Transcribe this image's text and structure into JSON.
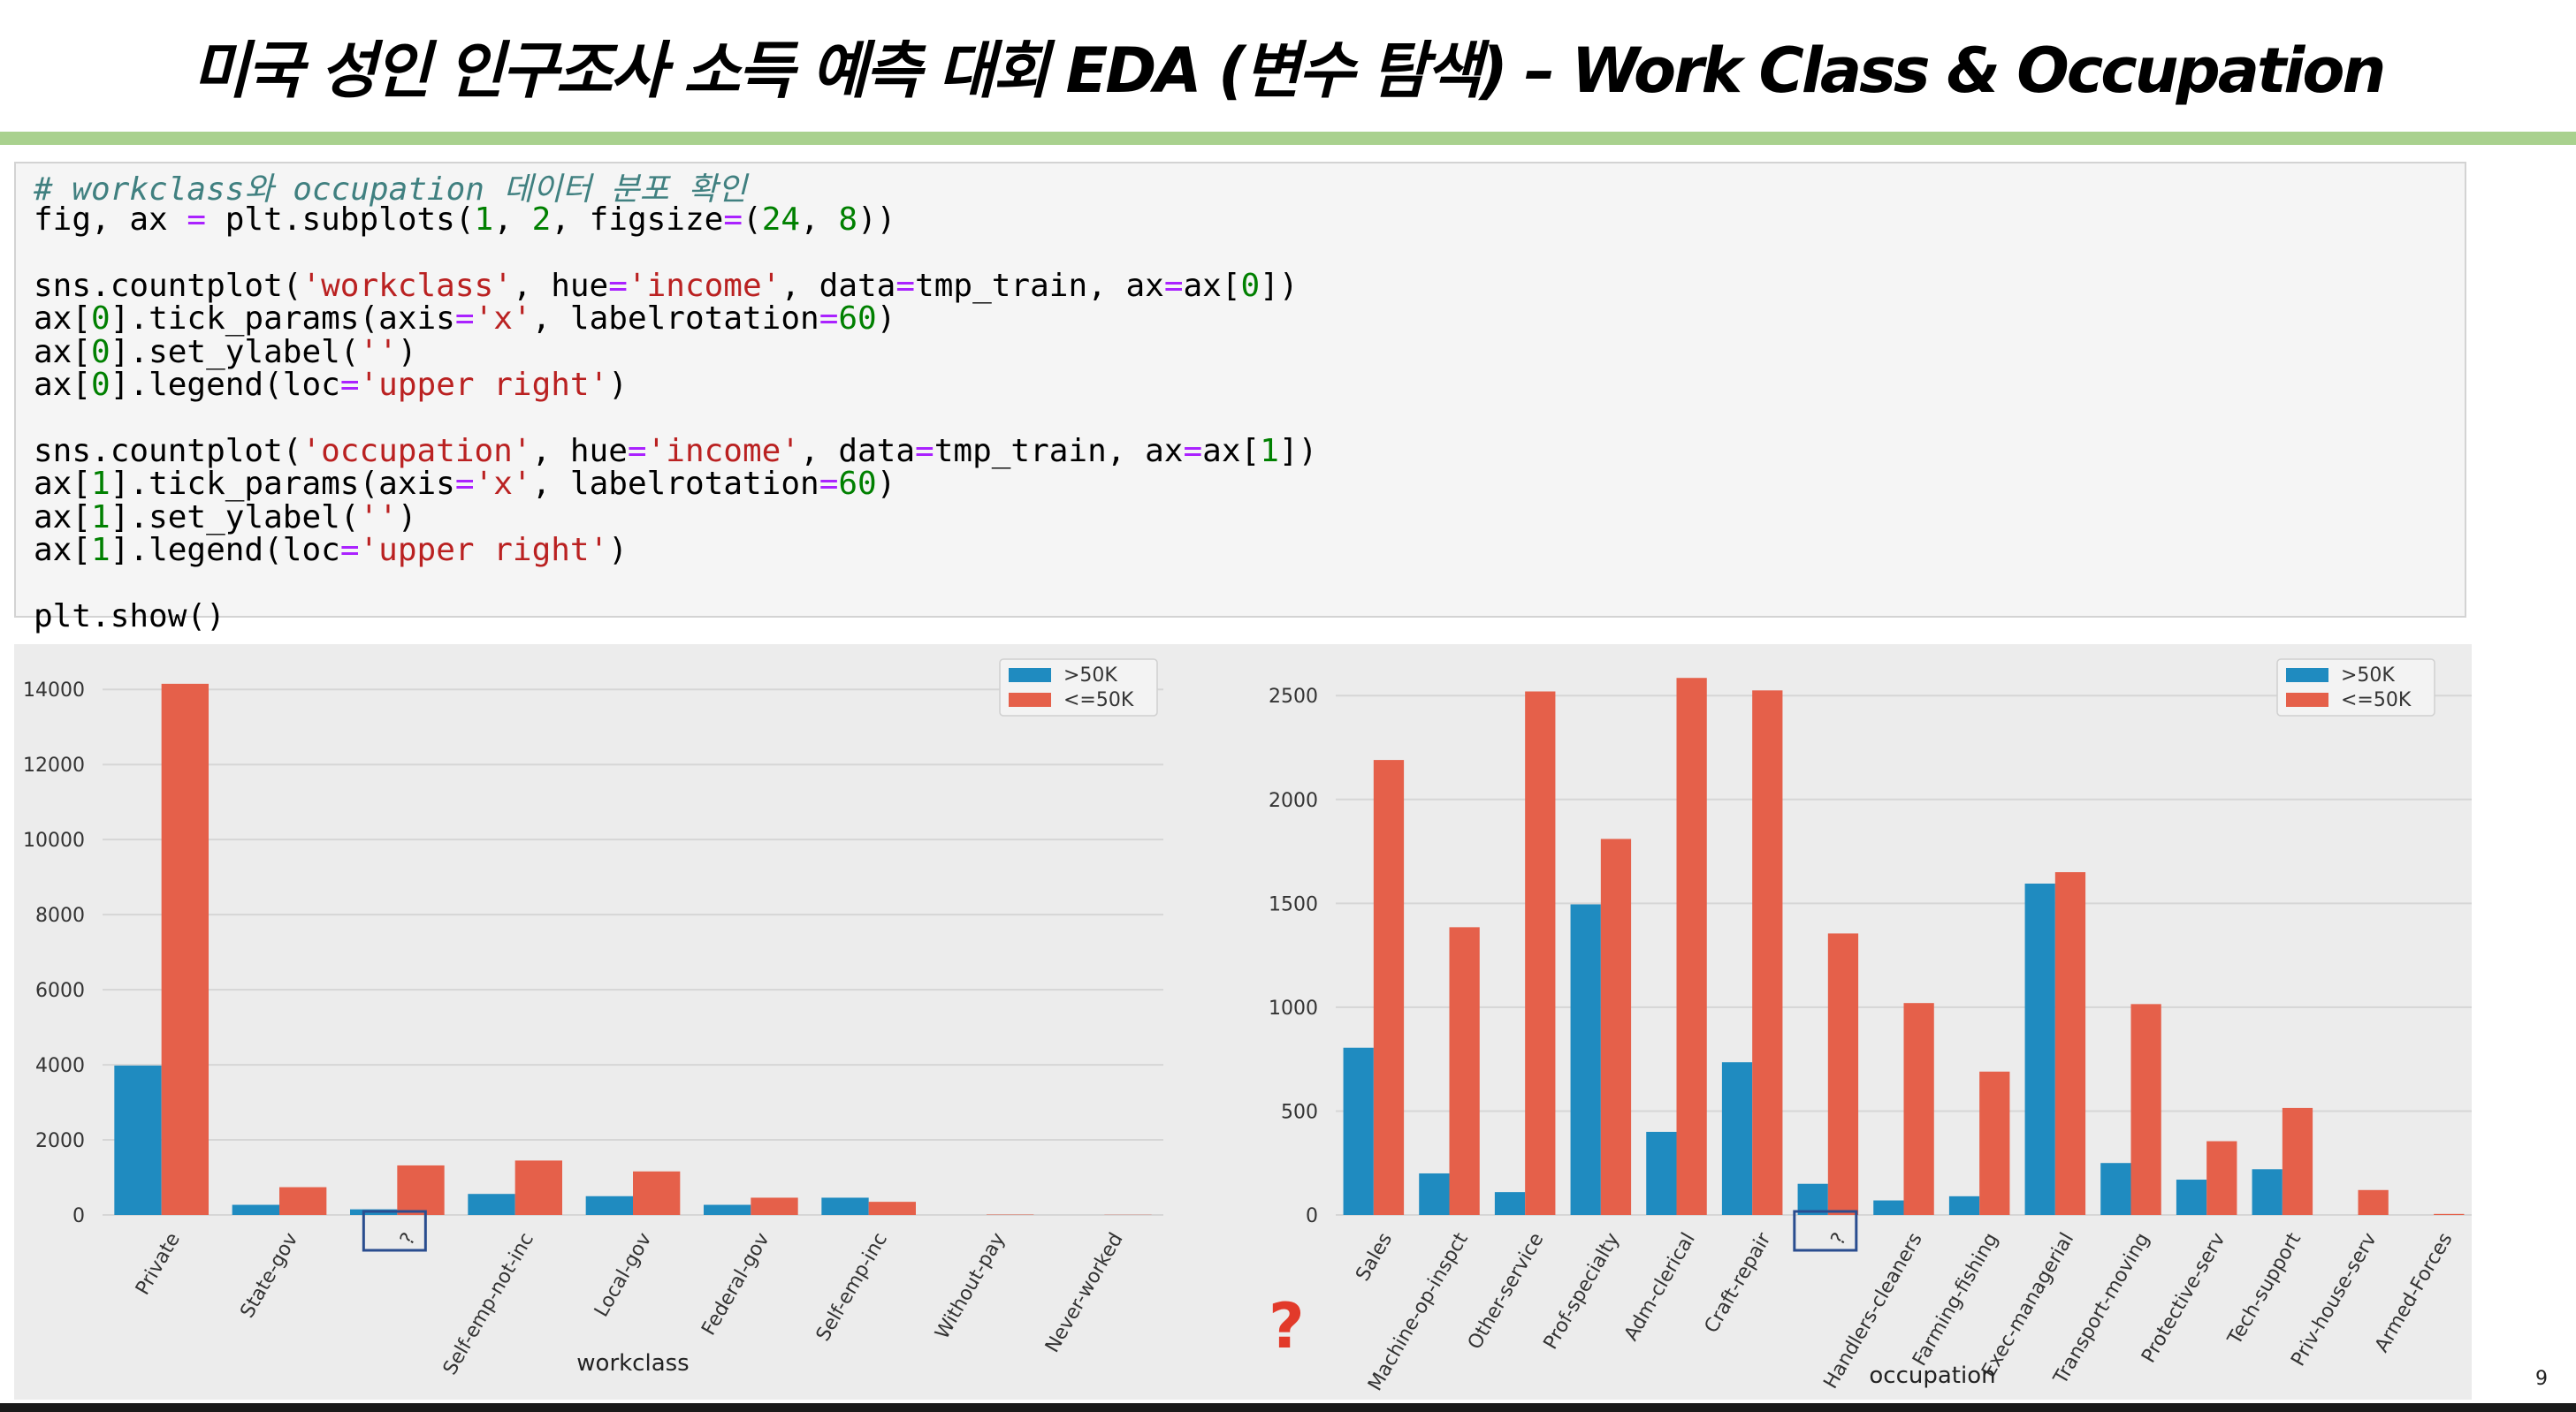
{
  "slide": {
    "title": "미국 성인 인구조사 소득 예측 대회 EDA (변수 탐색) – Work Class & Occupation",
    "page_number": "9",
    "annotation": "?"
  },
  "code": {
    "comment": "# workclass와 occupation 데이터 분포 확인",
    "lines": [
      "fig, ax = plt.subplots(1, 2, figsize=(24, 8))",
      "",
      "sns.countplot('workclass', hue='income', data=tmp_train, ax=ax[0])",
      "ax[0].tick_params(axis='x', labelrotation=60)",
      "ax[0].set_ylabel('')",
      "ax[0].legend(loc='upper right')",
      "",
      "sns.countplot('occupation', hue='income', data=tmp_train, ax=ax[1])",
      "ax[1].tick_params(axis='x', labelrotation=60)",
      "ax[1].set_ylabel('')",
      "ax[1].legend(loc='upper right')",
      "",
      "plt.show()"
    ]
  },
  "colors": {
    "gt50k": "#1f8bc0",
    "le50k": "#e5604a",
    "plot_bg": "#ececec",
    "grid": "#d6d6d6",
    "highlight_box": "#2a4d8f"
  },
  "chart_data": [
    {
      "type": "bar",
      "xlabel": "workclass",
      "ylabel": "",
      "ylim": [
        0,
        14500
      ],
      "yticks": [
        0,
        2000,
        4000,
        6000,
        8000,
        10000,
        12000,
        14000
      ],
      "legend": "top-right",
      "grid": true,
      "categories": [
        "Private",
        "State-gov",
        "?",
        "Self-emp-not-inc",
        "Local-gov",
        "Federal-gov",
        "Self-emp-inc",
        "Without-pay",
        "Never-worked"
      ],
      "highlighted_category": "?",
      "series": [
        {
          "name": ">50K",
          "color_key": "gt50k",
          "values": [
            3980,
            270,
            150,
            560,
            500,
            270,
            460,
            0,
            0
          ]
        },
        {
          "name": "<=50K",
          "color_key": "le50k",
          "values": [
            14150,
            740,
            1320,
            1450,
            1160,
            460,
            350,
            10,
            5
          ]
        }
      ]
    },
    {
      "type": "bar",
      "xlabel": "occupation",
      "ylabel": "",
      "ylim": [
        0,
        2620
      ],
      "yticks": [
        0,
        500,
        1000,
        1500,
        2000,
        2500
      ],
      "legend": "top-right",
      "grid": true,
      "categories": [
        "Sales",
        "Machine-op-inspct",
        "Other-service",
        "Prof-specialty",
        "Adm-clerical",
        "Craft-repair",
        "?",
        "Handlers-cleaners",
        "Farming-fishing",
        "Exec-managerial",
        "Transport-moving",
        "Protective-serv",
        "Tech-support",
        "Priv-house-serv",
        "Armed-Forces"
      ],
      "highlighted_category": "?",
      "series": [
        {
          "name": ">50K",
          "color_key": "gt50k",
          "values": [
            805,
            200,
            110,
            1495,
            400,
            735,
            150,
            70,
            90,
            1595,
            250,
            170,
            220,
            0,
            0
          ]
        },
        {
          "name": "<=50K",
          "color_key": "le50k",
          "values": [
            2190,
            1385,
            2520,
            1810,
            2585,
            2525,
            1355,
            1020,
            690,
            1650,
            1015,
            355,
            515,
            120,
            5
          ]
        }
      ]
    }
  ]
}
